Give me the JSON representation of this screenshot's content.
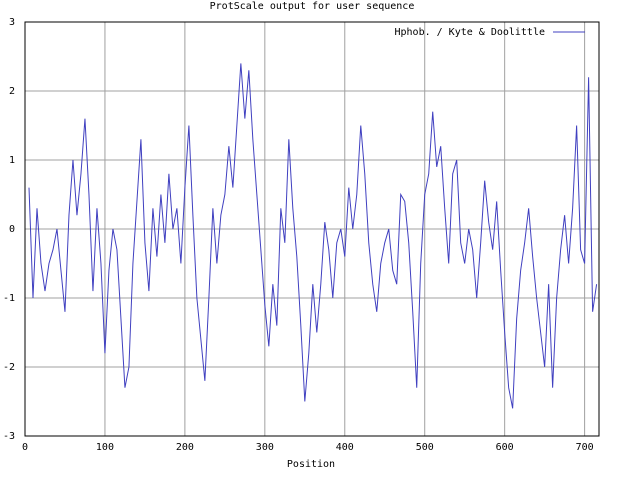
{
  "chart_data": {
    "type": "line",
    "title": "ProtScale output for user sequence",
    "x_label": "Position",
    "x": [
      5,
      10,
      15,
      20,
      25,
      30,
      35,
      40,
      45,
      50,
      55,
      60,
      65,
      70,
      75,
      80,
      85,
      90,
      95,
      100,
      105,
      110,
      115,
      120,
      125,
      130,
      135,
      140,
      145,
      150,
      155,
      160,
      165,
      170,
      175,
      180,
      185,
      190,
      195,
      200,
      205,
      210,
      215,
      220,
      225,
      230,
      235,
      240,
      245,
      250,
      255,
      260,
      265,
      270,
      275,
      280,
      285,
      290,
      295,
      300,
      305,
      310,
      315,
      320,
      325,
      330,
      335,
      340,
      345,
      350,
      355,
      360,
      365,
      370,
      375,
      380,
      385,
      390,
      395,
      400,
      405,
      410,
      415,
      420,
      425,
      430,
      435,
      440,
      445,
      450,
      455,
      460,
      465,
      470,
      475,
      480,
      485,
      490,
      495,
      500,
      505,
      510,
      515,
      520,
      525,
      530,
      535,
      540,
      545,
      550,
      555,
      560,
      565,
      570,
      575,
      580,
      585,
      590,
      595,
      600,
      605,
      610,
      615,
      620,
      625,
      630,
      635,
      640,
      645,
      650,
      655,
      660,
      665,
      670,
      675,
      680,
      685,
      690,
      695,
      700,
      705,
      710,
      715
    ],
    "series": [
      {
        "name": "Hphob. / Kyte & Doolittle",
        "color": "#4040c0",
        "values": [
          0.6,
          -1.0,
          0.3,
          -0.5,
          -0.9,
          -0.5,
          -0.3,
          0.0,
          -0.6,
          -1.2,
          0.2,
          1.0,
          0.2,
          0.8,
          1.6,
          0.5,
          -0.9,
          0.3,
          -0.5,
          -1.8,
          -0.6,
          0.0,
          -0.3,
          -1.3,
          -2.3,
          -2.0,
          -0.5,
          0.4,
          1.3,
          -0.2,
          -0.9,
          0.3,
          -0.4,
          0.5,
          -0.2,
          0.8,
          0.0,
          0.3,
          -0.5,
          0.6,
          1.5,
          0.2,
          -1.0,
          -1.6,
          -2.2,
          -1.0,
          0.3,
          -0.5,
          0.2,
          0.5,
          1.2,
          0.6,
          1.5,
          2.4,
          1.6,
          2.3,
          1.3,
          0.5,
          -0.3,
          -1.1,
          -1.7,
          -0.8,
          -1.4,
          0.3,
          -0.2,
          1.3,
          0.3,
          -0.4,
          -1.4,
          -2.5,
          -1.8,
          -0.8,
          -1.5,
          -0.8,
          0.1,
          -0.3,
          -1.0,
          -0.2,
          0.0,
          -0.4,
          0.6,
          0.0,
          0.5,
          1.5,
          0.8,
          -0.2,
          -0.8,
          -1.2,
          -0.5,
          -0.2,
          0.0,
          -0.6,
          -0.8,
          0.5,
          0.4,
          -0.2,
          -1.2,
          -2.3,
          -0.5,
          0.5,
          0.8,
          1.7,
          0.9,
          1.2,
          0.3,
          -0.5,
          0.8,
          1.0,
          -0.2,
          -0.5,
          0.0,
          -0.3,
          -1.0,
          -0.2,
          0.7,
          0.1,
          -0.3,
          0.4,
          -0.6,
          -1.5,
          -2.3,
          -2.6,
          -1.3,
          -0.6,
          -0.2,
          0.3,
          -0.4,
          -1.0,
          -1.5,
          -2.0,
          -0.8,
          -2.3,
          -1.0,
          -0.3,
          0.2,
          -0.5,
          0.3,
          1.5,
          -0.3,
          -0.5,
          2.2,
          -1.2,
          -0.8
        ]
      }
    ],
    "xlim": [
      0,
      718
    ],
    "ylim": [
      -3,
      3
    ],
    "xticks": [
      0,
      100,
      200,
      300,
      400,
      500,
      600,
      700
    ],
    "yticks": [
      -3,
      -2,
      -1,
      0,
      1,
      2,
      3
    ],
    "grid": true,
    "legend": "top-right"
  }
}
